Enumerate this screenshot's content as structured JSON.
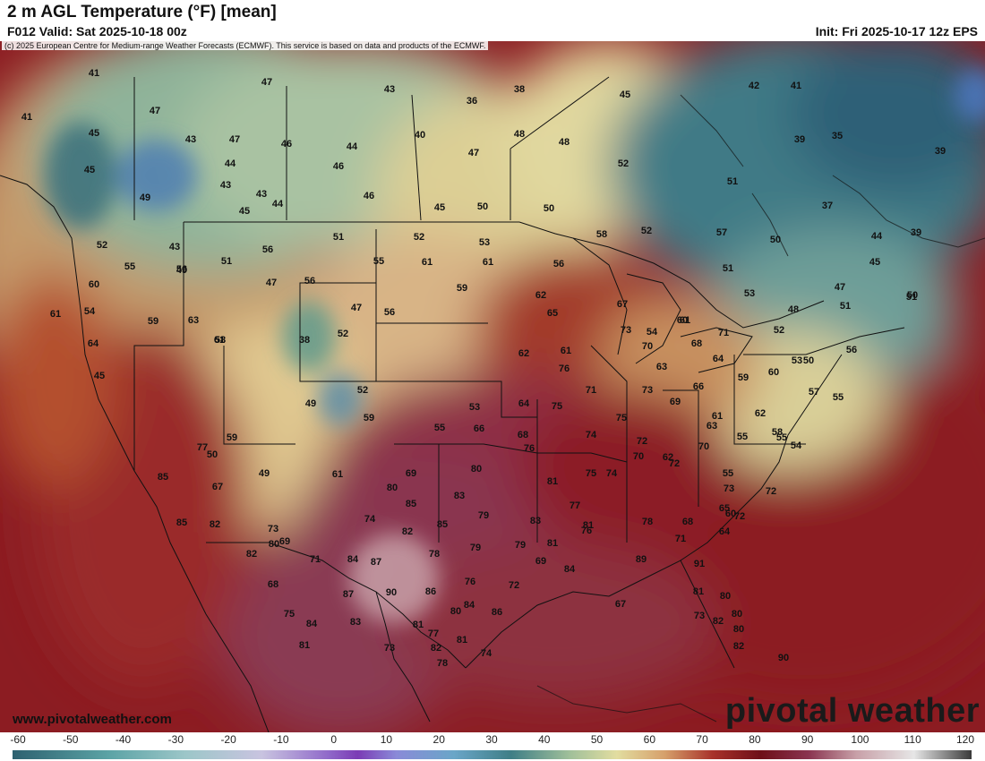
{
  "header": {
    "title": "2 m AGL Temperature (°F) [mean]",
    "valid": "F012 Valid: Sat 2025-10-18 00z",
    "init": "Init: Fri 2025-10-17 12z EPS"
  },
  "map": {
    "credit": "(c) 2025 European Centre for Medium-range Weather Forecasts (ECMWF). This service is based on data and products of the ECMWF.",
    "website": "www.pivotalweather.com",
    "brand": "pivotal weather",
    "values": [
      "41",
      "47",
      "41",
      "43",
      "36",
      "38",
      "45",
      "42",
      "41",
      "39",
      "35",
      "39",
      "47",
      "45",
      "43",
      "47",
      "44",
      "46",
      "40",
      "48",
      "48",
      "46",
      "45",
      "43",
      "47",
      "44",
      "46",
      "52",
      "51",
      "37",
      "49",
      "43",
      "45",
      "44",
      "45",
      "50",
      "50",
      "52",
      "58",
      "57",
      "50",
      "44",
      "39",
      "43",
      "56",
      "51",
      "52",
      "53",
      "55",
      "61",
      "55",
      "51",
      "45",
      "47",
      "50",
      "49",
      "52",
      "61",
      "56",
      "56",
      "47",
      "56",
      "59",
      "62",
      "51",
      "67",
      "65",
      "53",
      "48",
      "51",
      "60",
      "61",
      "59",
      "63",
      "61",
      "61",
      "60",
      "54",
      "52",
      "64",
      "58",
      "38",
      "52",
      "47",
      "56",
      "61",
      "73",
      "68",
      "50",
      "45",
      "71",
      "54",
      "63",
      "62",
      "70",
      "73",
      "66",
      "64",
      "59",
      "60",
      "53",
      "51",
      "52",
      "49",
      "59",
      "55",
      "66",
      "64",
      "75",
      "71",
      "76",
      "69",
      "61",
      "62",
      "58",
      "54",
      "55",
      "56",
      "59",
      "50",
      "53",
      "68",
      "70",
      "74",
      "72",
      "75",
      "63",
      "55",
      "55",
      "57",
      "70",
      "49",
      "61",
      "69",
      "80",
      "76",
      "81",
      "75",
      "74",
      "72",
      "62",
      "55",
      "73",
      "72",
      "85",
      "77",
      "67",
      "80",
      "85",
      "83",
      "85",
      "79",
      "83",
      "77",
      "78",
      "68",
      "65",
      "60",
      "72",
      "85",
      "82",
      "73",
      "69",
      "74",
      "82",
      "79",
      "79",
      "81",
      "81",
      "71",
      "64",
      "82",
      "80",
      "71",
      "84",
      "87",
      "78",
      "76",
      "72",
      "69",
      "84",
      "76",
      "89",
      "91",
      "80",
      "81",
      "82",
      "80",
      "68",
      "75",
      "84",
      "87",
      "90",
      "86",
      "80",
      "77",
      "78",
      "84",
      "86",
      "67",
      "73",
      "80",
      "82",
      "90",
      "81",
      "83",
      "73",
      "81",
      "82",
      "81",
      "74"
    ],
    "colors": {
      "cold_deep": "#1f4f73",
      "cold": "#3b7f91",
      "cool": "#8fb39a",
      "mild": "#d9d29a",
      "warm": "#d9a06b",
      "hot": "#a8322a",
      "very_hot": "#7a1420",
      "hottest": "#8a3450",
      "ocean": "#8c1c22"
    }
  },
  "colorbar": {
    "ticks": [
      "-60",
      "-50",
      "-40",
      "-30",
      "-20",
      "-10",
      "0",
      "10",
      "20",
      "30",
      "40",
      "50",
      "60",
      "70",
      "80",
      "90",
      "100",
      "110",
      "120"
    ]
  }
}
